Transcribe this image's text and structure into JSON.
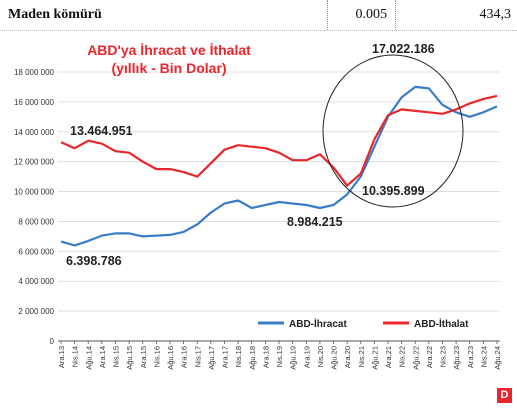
{
  "header": {
    "name": "Maden kömürü",
    "value1": "0.005",
    "value2": "434,3"
  },
  "brand": {
    "logo_letter": "D"
  },
  "colors": {
    "export": "#3a7cc9",
    "import": "#e8262b",
    "title": "#e8262b",
    "grid": "#d8d8d8"
  },
  "chart_data": {
    "type": "line",
    "title": "ABD'ya İhracat ve İthalat",
    "subtitle": "(yıllık - Bin Dolar)",
    "ylim": [
      0,
      18000000
    ],
    "y_ticks": [
      0,
      2000000,
      4000000,
      6000000,
      8000000,
      10000000,
      12000000,
      14000000,
      16000000,
      18000000
    ],
    "y_tick_labels": [
      "0",
      "2 000 000",
      "4 000 000",
      "6 000 000",
      "8 000 000",
      "10 000 000",
      "12 000 000",
      "14 000 000",
      "16 000 000",
      "18 000 000"
    ],
    "x_labels": [
      "Ara.13",
      "Nis.14",
      "Ağu.14",
      "Ara.14",
      "Nis.15",
      "Ağu.15",
      "Ara.15",
      "Nis.16",
      "Ağu.16",
      "Ara.16",
      "Nis.17",
      "Ağu.17",
      "Ara.17",
      "Nis.18",
      "Ağu.18",
      "Ara.18",
      "Nis.19",
      "Ağu.19",
      "Ara.19",
      "Nis.20",
      "Ağu.20",
      "Ara.20",
      "Nis.21",
      "Ağu.21",
      "Ara.21",
      "Nis.22",
      "Ağu.22",
      "Ara.22",
      "Nis.23",
      "Ağu.23",
      "Ara.23",
      "Nis.24",
      "Ağu.24"
    ],
    "grid": true,
    "legend_position": "bottom-right",
    "series": [
      {
        "name": "ABD-İhracat",
        "values": [
          6650000,
          6400000,
          6700000,
          7050000,
          7200000,
          7200000,
          7000000,
          7050000,
          7100000,
          7300000,
          7800000,
          8600000,
          9200000,
          9400000,
          8900000,
          9100000,
          9300000,
          9200000,
          9100000,
          8900000,
          9100000,
          9800000,
          11000000,
          13000000,
          15000000,
          16300000,
          17000000,
          16900000,
          15800000,
          15300000,
          15000000,
          15300000,
          15700000
        ]
      },
      {
        "name": "ABD-İthalat",
        "values": [
          13300000,
          12900000,
          13400000,
          13200000,
          12700000,
          12600000,
          12000000,
          11500000,
          11500000,
          11300000,
          11000000,
          11900000,
          12800000,
          13100000,
          13000000,
          12900000,
          12600000,
          12100000,
          12100000,
          12500000,
          11600000,
          10400000,
          11200000,
          13500000,
          15100000,
          15500000,
          15400000,
          15300000,
          15200000,
          15500000,
          15900000,
          16200000,
          16400000
        ]
      }
    ],
    "annotations": [
      "13.464.951",
      "6.398.786",
      "8.984.215",
      "10.395.899",
      "17.022.186"
    ]
  }
}
